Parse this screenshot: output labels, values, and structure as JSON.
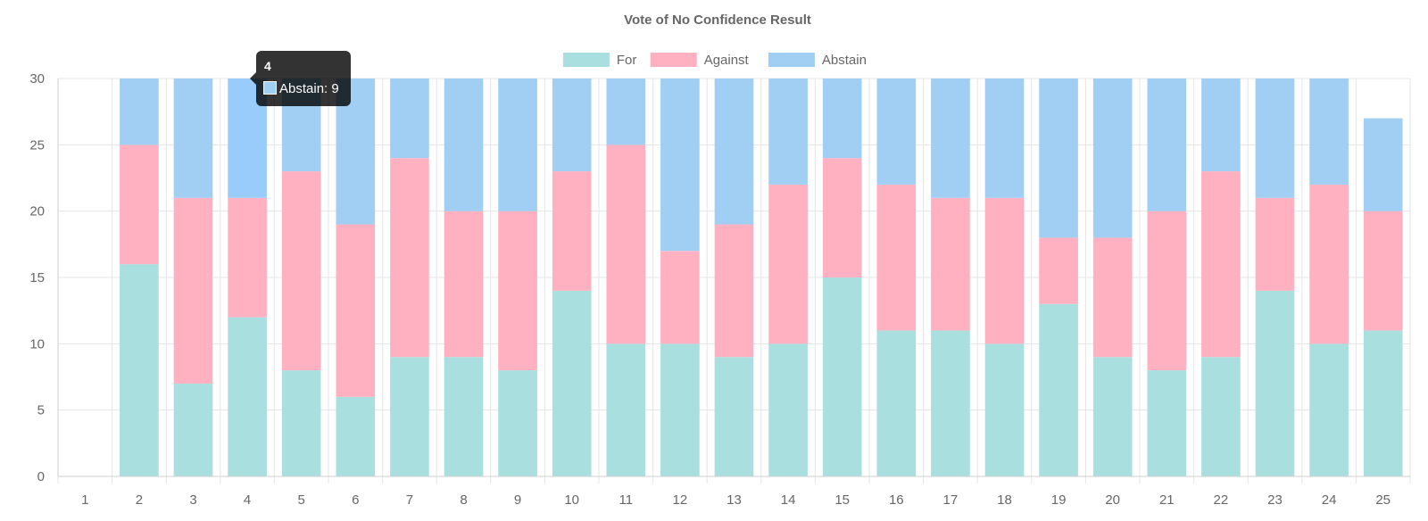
{
  "chart_data": {
    "type": "bar",
    "stacked": true,
    "title": "Vote of No Confidence Result",
    "xlabel": "",
    "ylabel": "",
    "categories": [
      "1",
      "2",
      "3",
      "4",
      "5",
      "6",
      "7",
      "8",
      "9",
      "10",
      "11",
      "12",
      "13",
      "14",
      "15",
      "16",
      "17",
      "18",
      "19",
      "20",
      "21",
      "22",
      "23",
      "24",
      "25"
    ],
    "ylim": [
      0,
      30
    ],
    "yticks": [
      0,
      5,
      10,
      15,
      20,
      25,
      30
    ],
    "grid": true,
    "legend_position": "top-center",
    "series": [
      {
        "name": "For",
        "color": "#a9dfdf",
        "values": [
          0,
          16,
          7,
          12,
          8,
          6,
          9,
          9,
          8,
          14,
          10,
          10,
          9,
          10,
          15,
          11,
          11,
          10,
          13,
          9,
          8,
          9,
          14,
          10,
          11
        ]
      },
      {
        "name": "Against",
        "color": "#ffb1c1",
        "values": [
          0,
          9,
          14,
          9,
          15,
          13,
          15,
          11,
          12,
          9,
          15,
          7,
          10,
          12,
          9,
          11,
          10,
          11,
          5,
          9,
          12,
          14,
          7,
          12,
          9
        ]
      },
      {
        "name": "Abstain",
        "color": "#a0cff3",
        "values": [
          0,
          5,
          9,
          9,
          7,
          11,
          6,
          10,
          10,
          7,
          5,
          13,
          11,
          8,
          6,
          8,
          9,
          9,
          12,
          12,
          10,
          7,
          9,
          8,
          7
        ]
      }
    ],
    "highlight": {
      "category_index": 3,
      "series_index": 2,
      "color": "#99ccfa"
    },
    "tooltip": {
      "title": "4",
      "label": "Abstain: 9"
    }
  }
}
